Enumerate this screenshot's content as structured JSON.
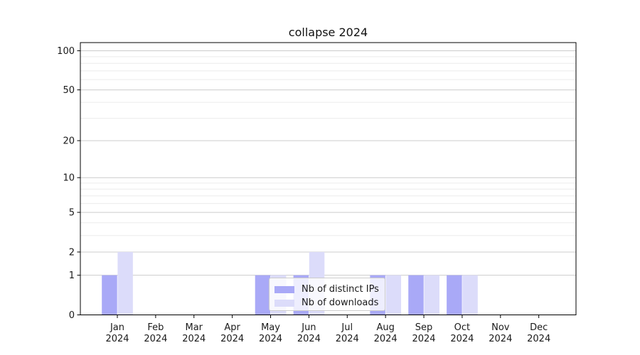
{
  "chart_data": {
    "type": "bar",
    "title": "collapse 2024",
    "year": "2024",
    "categories": [
      "Jan",
      "Feb",
      "Mar",
      "Apr",
      "May",
      "Jun",
      "Jul",
      "Aug",
      "Sep",
      "Oct",
      "Nov",
      "Dec"
    ],
    "series": [
      {
        "name": "Nb of distinct IPs",
        "color": "#a9a9f7",
        "values": [
          1,
          0,
          0,
          0,
          1,
          1,
          0,
          1,
          1,
          1,
          0,
          0
        ]
      },
      {
        "name": "Nb of downloads",
        "color": "#dcdcfa",
        "values": [
          2,
          0,
          0,
          0,
          1,
          2,
          0,
          1,
          1,
          1,
          0,
          0
        ]
      }
    ],
    "xlabel": "",
    "ylabel": "",
    "yscale": "log1p",
    "ylim": [
      0,
      115
    ],
    "ytick_labels": [
      "0",
      "1",
      "2",
      "5",
      "10",
      "20",
      "50",
      "100"
    ],
    "ytick_values": [
      0,
      1,
      2,
      5,
      10,
      20,
      50,
      100
    ],
    "minor_ytick_values": [
      3,
      4,
      6,
      7,
      8,
      9,
      30,
      40,
      60,
      70,
      80,
      90
    ],
    "grid": "horizontal",
    "legend_position": "inside lower-center"
  },
  "colors": {
    "bar_distinct_ips": "#a9a9f7",
    "bar_downloads": "#dcdcfa",
    "major_grid": "#cccccc",
    "minor_grid": "#ebebeb",
    "axis": "#000000",
    "tick_text": "#1a1a1a",
    "legend_border": "#cccccc",
    "legend_background": "rgba(255,255,255,0.8)"
  }
}
